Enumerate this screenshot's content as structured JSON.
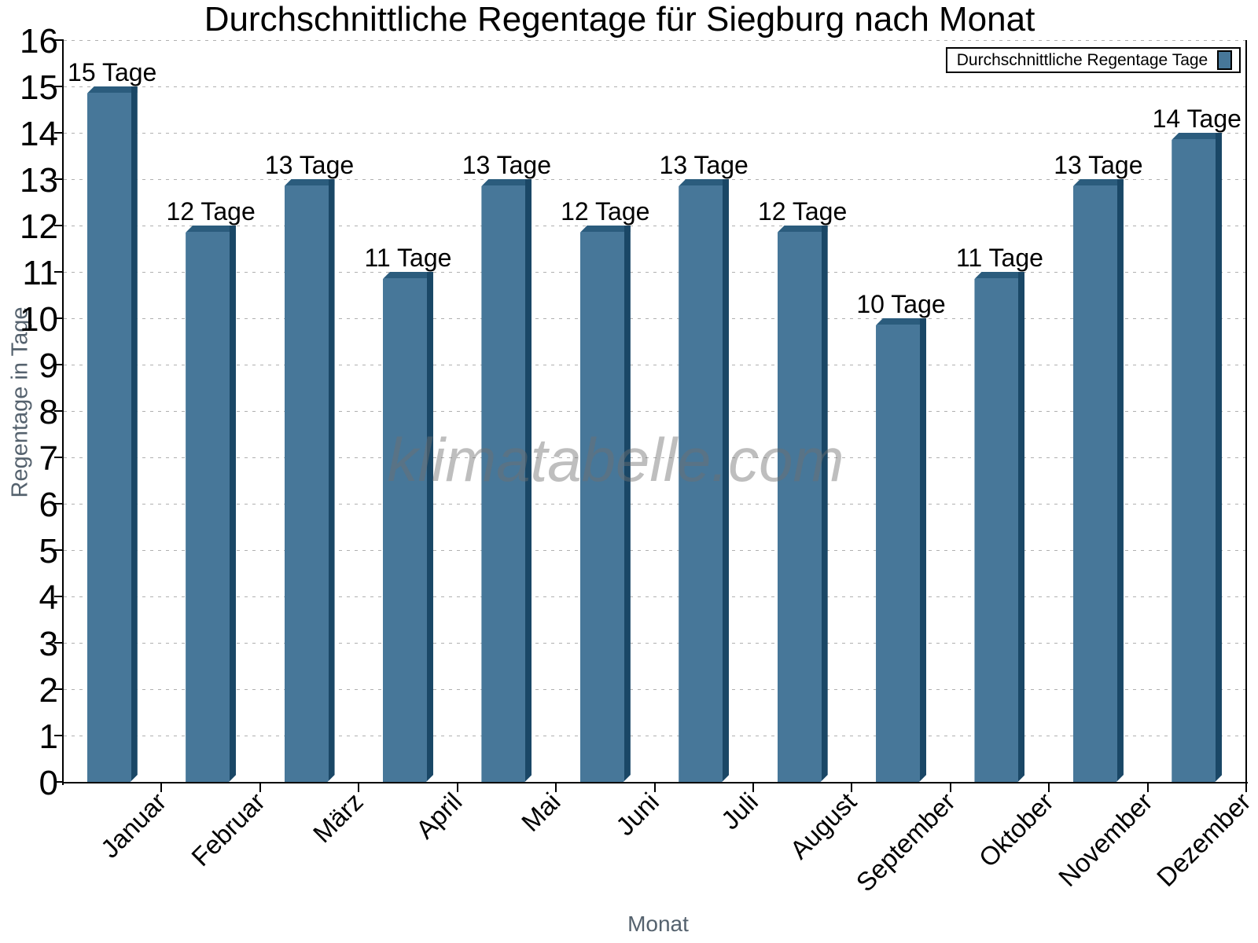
{
  "title": "Durchschnittliche Regentage für Siegburg nach Monat",
  "watermark": "klimatabelle.com",
  "legend": {
    "label": "Durchschnittliche Regentage Tage"
  },
  "x_axis_title": "Monat",
  "y_axis_title": "Regentage in Tage",
  "chart_data": {
    "type": "bar",
    "title": "Durchschnittliche Regentage für Siegburg nach Monat",
    "categories": [
      "Januar",
      "Februar",
      "März",
      "April",
      "Mai",
      "Juni",
      "Juli",
      "August",
      "September",
      "Oktober",
      "November",
      "Dezember"
    ],
    "values": [
      15,
      12,
      13,
      11,
      13,
      12,
      13,
      12,
      10,
      11,
      13,
      14
    ],
    "bar_labels": [
      "15 Tage",
      "12 Tage",
      "13 Tage",
      "11 Tage",
      "13 Tage",
      "12 Tage",
      "13 Tage",
      "12 Tage",
      "10 Tage",
      "11 Tage",
      "13 Tage",
      "14 Tage"
    ],
    "unit_suffix": "Tage",
    "xlabel": "Monat",
    "ylabel": "Regentage in Tage",
    "ylim": [
      0,
      16
    ],
    "yticks": [
      0,
      1,
      2,
      3,
      4,
      5,
      6,
      7,
      8,
      9,
      10,
      11,
      12,
      13,
      14,
      15,
      16
    ],
    "grid": "horizontal-dashed",
    "legend_position": "top-right",
    "legend_label": "Durchschnittliche Regentage Tage",
    "colors": {
      "bar_face": "#477799",
      "bar_top": "#2B5C7D",
      "bar_right": "#1A4766",
      "grid": "#b0b0b0",
      "axis": "#000000",
      "muted_text": "#55626e",
      "watermark_text": "#a8a8a8"
    }
  }
}
